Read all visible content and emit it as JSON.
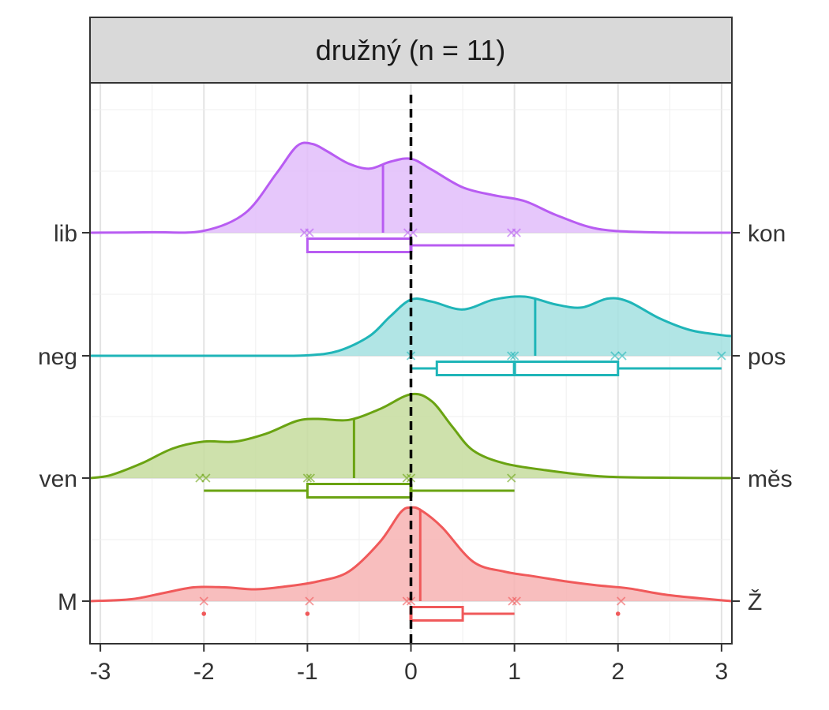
{
  "chart_data": {
    "type": "ridgeline",
    "facet_title": "družný (n = 11)",
    "xlim": [
      -3.1,
      3.1
    ],
    "x_ticks": [
      "-3",
      "-2",
      "-1",
      "0",
      "1",
      "2",
      "3"
    ],
    "x_tick_values": [
      -3,
      -2,
      -1,
      0,
      1,
      2,
      3
    ],
    "reference_line_x": 0,
    "grid": true,
    "legend": "none",
    "rows": [
      {
        "left_label": "lib",
        "right_label": "kon",
        "color": "#B85CF2",
        "fill": "#E2BDFA",
        "mean": -0.27,
        "box": {
          "min": -1,
          "q1": -1,
          "median": 0,
          "q3": 0,
          "max": 1
        },
        "outliers": [],
        "observations": [
          -1.03,
          -0.98,
          -0.03,
          0.02,
          0.97,
          1.02
        ],
        "density": [
          [
            -3.1,
            0.0
          ],
          [
            -2.5,
            0.005
          ],
          [
            -2.0,
            0.02
          ],
          [
            -1.6,
            0.2
          ],
          [
            -1.3,
            0.6
          ],
          [
            -1.1,
            0.88
          ],
          [
            -0.95,
            0.9
          ],
          [
            -0.8,
            0.82
          ],
          [
            -0.6,
            0.7
          ],
          [
            -0.4,
            0.65
          ],
          [
            -0.2,
            0.72
          ],
          [
            0.0,
            0.75
          ],
          [
            0.2,
            0.64
          ],
          [
            0.5,
            0.46
          ],
          [
            0.8,
            0.38
          ],
          [
            1.1,
            0.32
          ],
          [
            1.4,
            0.18
          ],
          [
            1.8,
            0.04
          ],
          [
            2.3,
            0.005
          ],
          [
            3.1,
            0.0
          ]
        ]
      },
      {
        "left_label": "neg",
        "right_label": "pos",
        "color": "#1FB5B8",
        "fill": "#A3E0E0",
        "mean": 1.2,
        "box": {
          "min": 0,
          "q1": 0.25,
          "median": 1,
          "q3": 2,
          "max": 3
        },
        "outliers": [],
        "observations": [
          0.0,
          0.97,
          1.0,
          1.97,
          2.04,
          3.0
        ],
        "density": [
          [
            -3.1,
            0.0
          ],
          [
            -1.5,
            0.0
          ],
          [
            -1.0,
            0.005
          ],
          [
            -0.7,
            0.05
          ],
          [
            -0.4,
            0.2
          ],
          [
            -0.2,
            0.4
          ],
          [
            0.0,
            0.57
          ],
          [
            0.2,
            0.55
          ],
          [
            0.5,
            0.47
          ],
          [
            0.8,
            0.57
          ],
          [
            1.1,
            0.6
          ],
          [
            1.4,
            0.52
          ],
          [
            1.65,
            0.49
          ],
          [
            1.9,
            0.58
          ],
          [
            2.1,
            0.55
          ],
          [
            2.4,
            0.38
          ],
          [
            2.7,
            0.26
          ],
          [
            3.0,
            0.21
          ],
          [
            3.1,
            0.2
          ]
        ]
      },
      {
        "left_label": "ven",
        "right_label": "měs",
        "color": "#6AA312",
        "fill": "#C5DC9E",
        "mean": -0.55,
        "box": {
          "min": -2,
          "q1": -1,
          "median": 0,
          "q3": 0,
          "max": 1
        },
        "outliers": [],
        "observations": [
          -2.04,
          -1.98,
          -1.0,
          -0.97,
          -0.04,
          0.0,
          0.97
        ],
        "density": [
          [
            -3.1,
            0.0
          ],
          [
            -2.9,
            0.03
          ],
          [
            -2.6,
            0.15
          ],
          [
            -2.3,
            0.3
          ],
          [
            -2.0,
            0.37
          ],
          [
            -1.7,
            0.37
          ],
          [
            -1.4,
            0.45
          ],
          [
            -1.1,
            0.58
          ],
          [
            -0.9,
            0.6
          ],
          [
            -0.6,
            0.59
          ],
          [
            -0.3,
            0.7
          ],
          [
            0.0,
            0.85
          ],
          [
            0.2,
            0.78
          ],
          [
            0.4,
            0.52
          ],
          [
            0.6,
            0.28
          ],
          [
            0.9,
            0.15
          ],
          [
            1.3,
            0.08
          ],
          [
            1.8,
            0.02
          ],
          [
            2.3,
            0.005
          ],
          [
            3.1,
            0.0
          ]
        ]
      },
      {
        "left_label": "M",
        "right_label": "Ž",
        "color": "#F0595A",
        "fill": "#F7B3B3",
        "mean": 0.09,
        "box": {
          "min": 0,
          "q1": 0,
          "median": 0,
          "q3": 0.5,
          "max": 1
        },
        "outliers": [
          -2,
          -1,
          2
        ],
        "observations": [
          -2.0,
          -0.98,
          -0.04,
          0.0,
          0.98,
          1.02,
          2.03
        ],
        "density": [
          [
            -3.1,
            0.0
          ],
          [
            -2.7,
            0.02
          ],
          [
            -2.4,
            0.08
          ],
          [
            -2.1,
            0.14
          ],
          [
            -1.8,
            0.14
          ],
          [
            -1.5,
            0.12
          ],
          [
            -1.2,
            0.15
          ],
          [
            -0.9,
            0.2
          ],
          [
            -0.6,
            0.3
          ],
          [
            -0.3,
            0.6
          ],
          [
            -0.1,
            0.9
          ],
          [
            0.0,
            0.95
          ],
          [
            0.1,
            0.92
          ],
          [
            0.3,
            0.75
          ],
          [
            0.6,
            0.4
          ],
          [
            0.9,
            0.3
          ],
          [
            1.2,
            0.25
          ],
          [
            1.5,
            0.2
          ],
          [
            1.8,
            0.16
          ],
          [
            2.1,
            0.13
          ],
          [
            2.5,
            0.06
          ],
          [
            3.1,
            0.0
          ]
        ]
      }
    ]
  }
}
